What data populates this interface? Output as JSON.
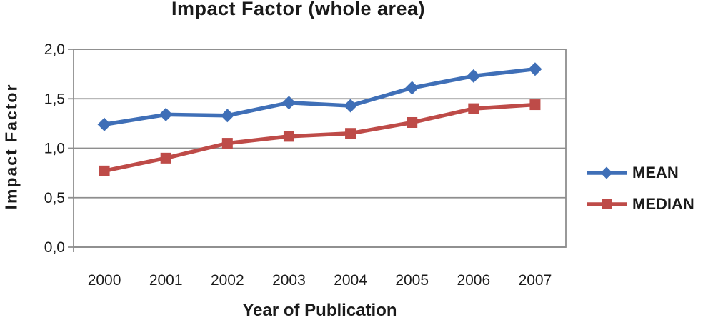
{
  "chart_data": {
    "type": "line",
    "title": "Impact Factor (whole area)",
    "xlabel": "Year of Publication",
    "ylabel": "Impact Factor",
    "categories": [
      "2000",
      "2001",
      "2002",
      "2003",
      "2004",
      "2005",
      "2006",
      "2007"
    ],
    "series": [
      {
        "name": "MEAN",
        "marker": "diamond",
        "color": "#3f6fb7",
        "values": [
          1.24,
          1.34,
          1.33,
          1.46,
          1.43,
          1.61,
          1.73,
          1.8
        ]
      },
      {
        "name": "MEDIAN",
        "marker": "square",
        "color": "#be4b48",
        "values": [
          0.77,
          0.9,
          1.05,
          1.12,
          1.15,
          1.26,
          1.4,
          1.44
        ]
      }
    ],
    "ylim": [
      0,
      2
    ],
    "y_ticks": [
      {
        "value": 0.0,
        "label": "0,0"
      },
      {
        "value": 0.5,
        "label": "0,5"
      },
      {
        "value": 1.0,
        "label": "1,0"
      },
      {
        "value": 1.5,
        "label": "1,5"
      },
      {
        "value": 2.0,
        "label": "2,0"
      }
    ],
    "grid": true,
    "legend_position": "right",
    "colors": {
      "grid": "#8e8e8e",
      "text": "#1a1a1a",
      "background": "#ffffff"
    }
  }
}
